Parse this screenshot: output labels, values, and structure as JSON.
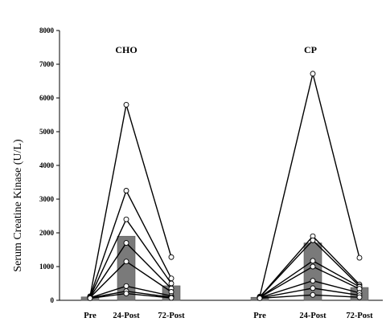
{
  "chart_data": {
    "type": "bar",
    "ylabel": "Serum Creatine Kinase (U/L)",
    "ylim": [
      0,
      8000
    ],
    "yticks": [
      "0",
      "1000",
      "2000",
      "3000",
      "4000",
      "5000",
      "6000",
      "7000",
      "8000"
    ],
    "categories": [
      "Pre",
      "24-Post",
      "72-Post"
    ],
    "grid": false,
    "colors": {
      "bar": "#7a7a7a",
      "line": "#000000",
      "marker_fill": "#ffffff"
    },
    "panels": [
      {
        "title": "CHO",
        "bar_values": [
          100,
          1900,
          430
        ],
        "individuals": [
          [
            120,
            5800,
            1280
          ],
          [
            110,
            3250,
            650
          ],
          [
            100,
            2400,
            500
          ],
          [
            90,
            1700,
            350
          ],
          [
            80,
            1150,
            250
          ],
          [
            75,
            420,
            130
          ],
          [
            70,
            270,
            90
          ],
          [
            60,
            200,
            70
          ]
        ]
      },
      {
        "title": "CP",
        "bar_values": [
          90,
          1700,
          380
        ],
        "individuals": [
          [
            110,
            6720,
            1260
          ],
          [
            100,
            1900,
            470
          ],
          [
            95,
            1780,
            420
          ],
          [
            90,
            1170,
            400
          ],
          [
            85,
            1000,
            340
          ],
          [
            80,
            580,
            220
          ],
          [
            70,
            360,
            150
          ],
          [
            60,
            160,
            90
          ]
        ]
      }
    ]
  }
}
